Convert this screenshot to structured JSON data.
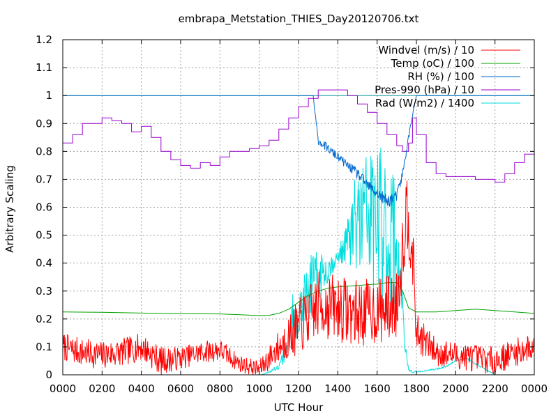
{
  "chart_data": {
    "type": "line",
    "title": "embrapa_Metstation_THIES_Day20120706.txt",
    "xlabel": "UTC Hour",
    "ylabel": "Arbitrary Scaling",
    "xlim": [
      0,
      24
    ],
    "ylim": [
      0,
      1.2
    ],
    "x_ticks": [
      0,
      2,
      4,
      6,
      8,
      10,
      12,
      14,
      16,
      18,
      20,
      22,
      24
    ],
    "x_tick_labels": [
      "0000",
      "0200",
      "0400",
      "0600",
      "0800",
      "1000",
      "1200",
      "1400",
      "1600",
      "1800",
      "2000",
      "2200",
      "0000"
    ],
    "y_ticks": [
      0,
      0.1,
      0.2,
      0.3,
      0.4,
      0.5,
      0.6,
      0.7,
      0.8,
      0.9,
      1,
      1.1,
      1.2
    ],
    "y_tick_labels": [
      "0",
      "0.1",
      "0.2",
      "0.3",
      "0.4",
      "0.5",
      "0.6",
      "0.7",
      "0.8",
      "0.9",
      "1",
      "1.1",
      "1.2"
    ],
    "grid": true,
    "legend_position": "top-right",
    "reference_lines": [
      {
        "y": 1.0,
        "color": "#009999"
      }
    ],
    "series": [
      {
        "name": "Windvel (m/s) / 10",
        "color": "#ff0000",
        "style": "noisy",
        "noise_seed": 7,
        "x": [
          0,
          1,
          2,
          3,
          4,
          5,
          6,
          7,
          8,
          9,
          10,
          11,
          12,
          13,
          14,
          15,
          16,
          17,
          17.5,
          17.8,
          18,
          19,
          20,
          21,
          22,
          23,
          24
        ],
        "y": [
          0.1,
          0.08,
          0.07,
          0.08,
          0.1,
          0.05,
          0.06,
          0.08,
          0.09,
          0.04,
          0.02,
          0.1,
          0.17,
          0.25,
          0.24,
          0.22,
          0.23,
          0.25,
          0.6,
          0.45,
          0.15,
          0.08,
          0.07,
          0.06,
          0.05,
          0.08,
          0.1
        ],
        "noise": [
          0.05,
          0.05,
          0.05,
          0.05,
          0.05,
          0.05,
          0.04,
          0.04,
          0.04,
          0.03,
          0.03,
          0.06,
          0.1,
          0.12,
          0.12,
          0.12,
          0.12,
          0.12,
          0.15,
          0.12,
          0.07,
          0.05,
          0.05,
          0.05,
          0.05,
          0.05,
          0.05
        ]
      },
      {
        "name": "Temp (oC) / 100",
        "color": "#00a000",
        "x": [
          0,
          2,
          4,
          6,
          8,
          9,
          10,
          10.5,
          11,
          11.5,
          12,
          12.5,
          13,
          13.5,
          14,
          15,
          16,
          16.5,
          17,
          17.3,
          17.6,
          18,
          19,
          20,
          21,
          22,
          23,
          24
        ],
        "y": [
          0.225,
          0.224,
          0.221,
          0.219,
          0.218,
          0.215,
          0.212,
          0.213,
          0.22,
          0.235,
          0.26,
          0.285,
          0.3,
          0.31,
          0.315,
          0.32,
          0.325,
          0.33,
          0.33,
          0.3,
          0.24,
          0.225,
          0.225,
          0.23,
          0.235,
          0.23,
          0.225,
          0.22
        ]
      },
      {
        "name": "RH (%) / 100",
        "color": "#0066cc",
        "style": "noisy",
        "noise_seed": 11,
        "x": [
          0,
          12.6,
          12.75,
          12.8,
          12.9,
          13,
          13.5,
          14,
          14.5,
          15,
          15.5,
          16,
          16.5,
          17,
          17.3,
          17.6,
          17.8,
          18,
          20,
          22,
          24
        ],
        "y": [
          1.0,
          1.0,
          1.0,
          0.96,
          0.9,
          0.84,
          0.81,
          0.78,
          0.75,
          0.72,
          0.68,
          0.65,
          0.62,
          0.64,
          0.72,
          0.85,
          0.93,
          1.0,
          1.0,
          1.0,
          1.0
        ],
        "noise": [
          0,
          0,
          0,
          0.005,
          0.01,
          0.015,
          0.015,
          0.015,
          0.015,
          0.02,
          0.02,
          0.02,
          0.025,
          0.02,
          0.02,
          0.01,
          0.005,
          0,
          0,
          0,
          0
        ]
      },
      {
        "name": "Pres-990 (hPa) / 10",
        "color": "#9900cc",
        "style": "step",
        "x": [
          0,
          0.5,
          1,
          1.5,
          2,
          2.5,
          3,
          3.5,
          4,
          4.5,
          5,
          5.5,
          6,
          6.5,
          7,
          7.5,
          8,
          8.5,
          9,
          9.5,
          10,
          10.5,
          11,
          11.5,
          12,
          12.5,
          13,
          13.5,
          14,
          14.5,
          15,
          15.5,
          16,
          16.5,
          17,
          17.3,
          17.6,
          17.8,
          18,
          18.5,
          19,
          19.5,
          20,
          20.5,
          21,
          21.5,
          22,
          22.5,
          23,
          23.5,
          24
        ],
        "y": [
          0.83,
          0.86,
          0.9,
          0.9,
          0.92,
          0.91,
          0.9,
          0.87,
          0.89,
          0.85,
          0.8,
          0.77,
          0.75,
          0.74,
          0.76,
          0.75,
          0.78,
          0.8,
          0.8,
          0.81,
          0.82,
          0.84,
          0.88,
          0.92,
          0.96,
          0.99,
          1.02,
          1.02,
          1.02,
          1.0,
          0.97,
          0.94,
          0.9,
          0.86,
          0.82,
          0.8,
          0.83,
          0.92,
          0.86,
          0.76,
          0.72,
          0.71,
          0.71,
          0.71,
          0.7,
          0.7,
          0.69,
          0.72,
          0.76,
          0.79,
          0.83
        ]
      },
      {
        "name": "Rad (W/m2) / 1400",
        "color": "#00dddd",
        "style": "noisy",
        "noise_seed": 23,
        "x": [
          0,
          10.1,
          10.5,
          11,
          11.3,
          11.6,
          11.8,
          12,
          12.5,
          13,
          13.5,
          14,
          14.5,
          15,
          15.5,
          16,
          16.5,
          16.8,
          17,
          17.2,
          17.4,
          17.6,
          17.8,
          18,
          19,
          19.5,
          20,
          20.5,
          21,
          21.5,
          22,
          24
        ],
        "y": [
          0,
          0,
          0.01,
          0.03,
          0.08,
          0.15,
          0.25,
          0.2,
          0.3,
          0.35,
          0.38,
          0.42,
          0.48,
          0.55,
          0.58,
          0.55,
          0.5,
          0.5,
          0.45,
          0.35,
          0.1,
          0.02,
          0.01,
          0.01,
          0.02,
          0.03,
          0.05,
          0.06,
          0.04,
          0.02,
          0.0,
          0.0
        ],
        "noise": [
          0,
          0,
          0.003,
          0.01,
          0.04,
          0.07,
          0.1,
          0.1,
          0.12,
          0.1,
          0.05,
          0.02,
          0.08,
          0.22,
          0.25,
          0.28,
          0.3,
          0.28,
          0.2,
          0.1,
          0.03,
          0.005,
          0.003,
          0.003,
          0.003,
          0.003,
          0.003,
          0.003,
          0.003,
          0.003,
          0,
          0
        ]
      }
    ]
  }
}
